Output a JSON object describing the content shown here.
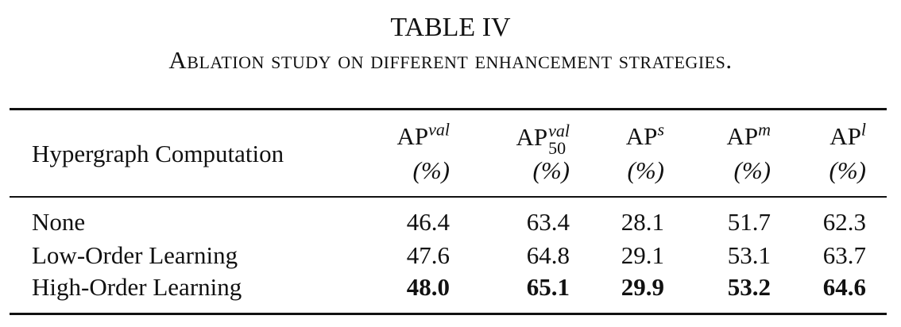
{
  "title": "TABLE IV",
  "caption": "Ablation study on different enhancement strategies.",
  "table": {
    "row_header": "Hypergraph Computation",
    "columns": [
      {
        "base": "AP",
        "sup": "val",
        "unit": "(%)"
      },
      {
        "base": "AP",
        "sup": "val",
        "sub": "50",
        "unit": "(%)"
      },
      {
        "base": "AP",
        "sup": "s",
        "unit": "(%)"
      },
      {
        "base": "AP",
        "sup": "m",
        "unit": "(%)"
      },
      {
        "base": "AP",
        "sup": "l",
        "unit": "(%)"
      }
    ],
    "rows": [
      {
        "label": "None",
        "values": [
          "46.4",
          "63.4",
          "28.1",
          "51.7",
          "62.3"
        ]
      },
      {
        "label": "Low-Order Learning",
        "values": [
          "47.6",
          "64.8",
          "29.1",
          "53.1",
          "63.7"
        ]
      },
      {
        "label": "High-Order Learning",
        "values": [
          "48.0",
          "65.1",
          "29.9",
          "53.2",
          "64.6"
        ],
        "bold": true
      }
    ]
  }
}
